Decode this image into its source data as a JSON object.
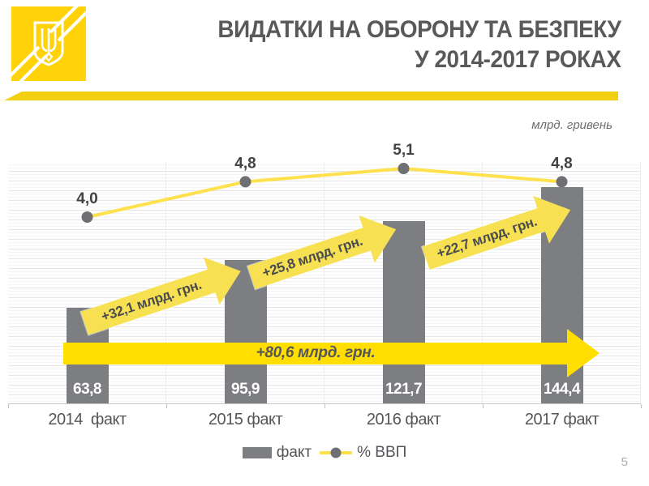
{
  "slide": {
    "title_line1": "ВИДАТКИ НА ОБОРОНУ ТА БЕЗПЕКУ",
    "title_line2": "У 2014-2017 РОКАХ",
    "units_note": "млрд. гривень",
    "page_number": "5"
  },
  "logo": {
    "icon": "trident-emblem",
    "color": "#FFD20A"
  },
  "chart_data": {
    "type": "bar",
    "title": "Видатки на оборону та безпеку у 2014-2017 роках",
    "units": "млрд. гривень",
    "categories": [
      "2014  факт",
      "2015 факт",
      "2016 факт",
      "2017 факт"
    ],
    "series": [
      {
        "name": "факт",
        "type": "bar",
        "values": [
          63.8,
          95.9,
          121.7,
          144.4
        ],
        "value_labels": [
          "63,8",
          "95,9",
          "121,7",
          "144,4"
        ],
        "color": "#7D7E82"
      },
      {
        "name": "% ВВП",
        "type": "line",
        "values": [
          4.0,
          4.8,
          5.1,
          4.8
        ],
        "value_labels": [
          "4,0",
          "4,8",
          "5,1",
          "4,8"
        ],
        "color": "#FFE14D",
        "marker_color": "#6F7073"
      }
    ],
    "annotations": {
      "increments": [
        "+32,1 млрд. грн.",
        "+25,8 млрд. грн.",
        "+22,7 млрд. грн."
      ],
      "total_increment": "+80,6 млрд. грн."
    },
    "legend": [
      {
        "label": "факт"
      },
      {
        "label": "% ВВП"
      }
    ],
    "grid": true,
    "legend_position": "bottom",
    "ylim_bars": [
      0,
      160
    ],
    "ylim_line": [
      0,
      6
    ]
  },
  "colors": {
    "accent_yellow": "#FFD20A",
    "total_arrow_yellow": "#FFDE00",
    "delta_arrow_yellow": "#F7E153",
    "line_yellow": "#FFE14D",
    "bar_gray": "#7D7E82",
    "marker_gray": "#6F7073",
    "title_gray": "#58595B"
  }
}
